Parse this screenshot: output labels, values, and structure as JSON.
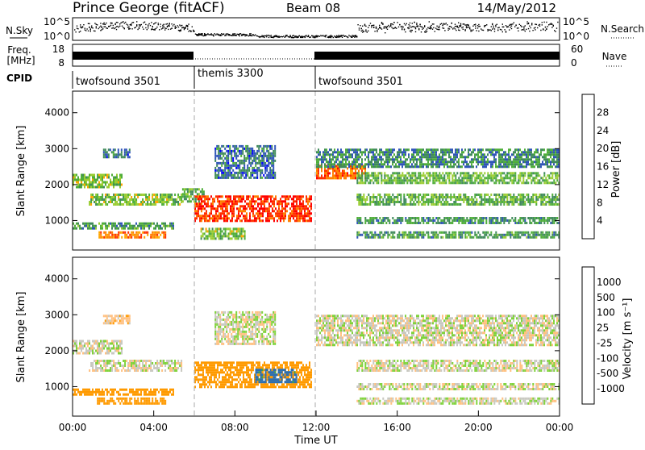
{
  "header": {
    "title": "Prince George (fitACF)",
    "beam": "Beam 08",
    "date": "14/May/2012"
  },
  "noise_panel": {
    "left_label": "N.Sky",
    "left_ticks": [
      "10^5",
      "10^0"
    ],
    "right_label": "N.Search",
    "right_ticks": [
      "10^5",
      "10^0"
    ]
  },
  "freq_panel": {
    "left_label_1": "Freq.",
    "left_label_2": "[MHz]",
    "left_ticks": [
      "18",
      "8"
    ],
    "right_label": "Nave",
    "right_ticks": [
      "60",
      "0"
    ]
  },
  "cpid_panel": {
    "label": "CPID",
    "modes": [
      {
        "name": "twofsound 3501",
        "start": 0,
        "end": 6
      },
      {
        "name": "themis 3300",
        "start": 6,
        "end": 12
      },
      {
        "name": "twofsound 3501",
        "start": 12,
        "end": 24
      }
    ]
  },
  "colors": {
    "power_scale": [
      "#0000ff",
      "#2f54b8",
      "#3f8a5a",
      "#4fae3a",
      "#9acd32",
      "#ffa500",
      "#ff7f00",
      "#ff3000",
      "#ff0000"
    ],
    "velocity_scale": [
      "#1f3fc6",
      "#2d6fb0",
      "#3fa34a",
      "#7fd23a",
      "#c8c8c0",
      "#ffc080",
      "#ff9a00",
      "#ff6400",
      "#ff0000"
    ]
  },
  "chart_data": [
    {
      "type": "heatmap",
      "title": "Power",
      "xlabel": "",
      "ylabel": "Slant Range [km]",
      "xlim": [
        0,
        24
      ],
      "ylim": [
        180,
        4600
      ],
      "y_ticks": [
        "1000",
        "2000",
        "3000",
        "4000"
      ],
      "colorbar_label": "Power [dB]",
      "colorbar_ticks": [
        "4",
        "8",
        "12",
        "16",
        "20",
        "24",
        "28"
      ],
      "colorbar_range": [
        0,
        32
      ],
      "regions": [
        {
          "t0": 0.0,
          "t1": 2.4,
          "r0": 1900,
          "r1": 2300,
          "level": 14
        },
        {
          "t0": 0.8,
          "t1": 5.4,
          "r0": 1450,
          "r1": 1750,
          "level": 14
        },
        {
          "t0": 0.0,
          "t1": 5.0,
          "r0": 750,
          "r1": 950,
          "level": 10
        },
        {
          "t0": 1.2,
          "t1": 4.6,
          "r0": 500,
          "r1": 700,
          "level": 24
        },
        {
          "t0": 1.5,
          "t1": 2.8,
          "r0": 2750,
          "r1": 3000,
          "level": 6
        },
        {
          "t0": 5.4,
          "t1": 6.5,
          "r0": 1500,
          "r1": 1900,
          "level": 12
        },
        {
          "t0": 6.0,
          "t1": 11.8,
          "r0": 1000,
          "r1": 1700,
          "level": 28
        },
        {
          "t0": 7.0,
          "t1": 10.0,
          "r0": 2200,
          "r1": 3100,
          "level": 6
        },
        {
          "t0": 6.3,
          "t1": 8.5,
          "r0": 500,
          "r1": 800,
          "level": 14
        },
        {
          "t0": 12.0,
          "t1": 14.4,
          "r0": 2150,
          "r1": 2550,
          "level": 26
        },
        {
          "t0": 12.0,
          "t1": 24.0,
          "r0": 2500,
          "r1": 3000,
          "level": 8
        },
        {
          "t0": 14.0,
          "t1": 24.0,
          "r0": 2050,
          "r1": 2350,
          "level": 13
        },
        {
          "t0": 14.0,
          "t1": 24.0,
          "r0": 1450,
          "r1": 1750,
          "level": 12
        },
        {
          "t0": 14.0,
          "t1": 24.0,
          "r0": 900,
          "r1": 1100,
          "level": 9
        },
        {
          "t0": 14.0,
          "t1": 24.0,
          "r0": 500,
          "r1": 700,
          "level": 10
        }
      ]
    },
    {
      "type": "heatmap",
      "title": "Velocity",
      "xlabel": "Time UT",
      "ylabel": "Slant Range [km]",
      "xlim": [
        0,
        24
      ],
      "ylim": [
        180,
        4600
      ],
      "y_ticks": [
        "1000",
        "2000",
        "3000",
        "4000"
      ],
      "x_ticks": [
        "00:00",
        "04:00",
        "08:00",
        "12:00",
        "16:00",
        "20:00",
        "00:00"
      ],
      "colorbar_label": "Velocity [m s^-1]",
      "colorbar_ticks": [
        "1000",
        "500",
        "100",
        "25",
        "-25",
        "-100",
        "-500",
        "-1000"
      ],
      "regions": [
        {
          "t0": 0.0,
          "t1": 2.4,
          "r0": 1900,
          "r1": 2300,
          "v": 0
        },
        {
          "t0": 0.8,
          "t1": 5.4,
          "r0": 1450,
          "r1": 1750,
          "v": 0
        },
        {
          "t0": 0.0,
          "t1": 5.0,
          "r0": 750,
          "r1": 950,
          "v": -300
        },
        {
          "t0": 1.2,
          "t1": 4.6,
          "r0": 500,
          "r1": 700,
          "v": -300
        },
        {
          "t0": 1.5,
          "t1": 2.8,
          "r0": 2750,
          "r1": 3000,
          "v": -60
        },
        {
          "t0": 6.0,
          "t1": 11.8,
          "r0": 1000,
          "r1": 1700,
          "v": -300
        },
        {
          "t0": 9.0,
          "t1": 11.0,
          "r0": 1100,
          "r1": 1500,
          "v": 300
        },
        {
          "t0": 7.0,
          "t1": 10.0,
          "r0": 2200,
          "r1": 3100,
          "v": 0
        },
        {
          "t0": 12.0,
          "t1": 24.0,
          "r0": 2150,
          "r1": 3000,
          "v": 0
        },
        {
          "t0": 14.0,
          "t1": 24.0,
          "r0": 1450,
          "r1": 1750,
          "v": 0
        },
        {
          "t0": 14.0,
          "t1": 24.0,
          "r0": 900,
          "r1": 1100,
          "v": 0
        },
        {
          "t0": 14.0,
          "t1": 24.0,
          "r0": 500,
          "r1": 700,
          "v": 0
        }
      ]
    }
  ]
}
